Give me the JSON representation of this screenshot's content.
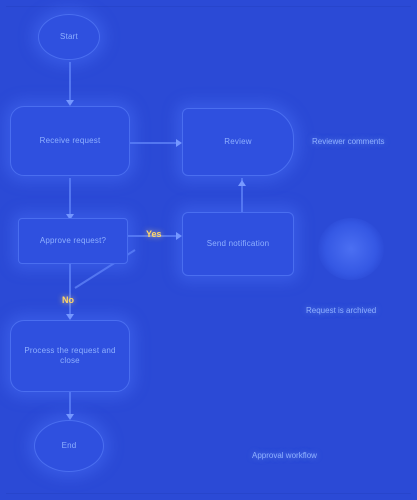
{
  "diagram": {
    "nodes": {
      "start": {
        "label": "Start"
      },
      "step1": {
        "label": "Receive request"
      },
      "step2": {
        "label": "Review"
      },
      "decision": {
        "label": "Approve request?"
      },
      "step3": {
        "label": "Send notification"
      },
      "step4": {
        "label": "Process the request and close"
      },
      "end": {
        "label": "End"
      },
      "note_right1": {
        "label": "Reviewer comments"
      },
      "note_right2": {
        "label": "Request is archived"
      },
      "legend": {
        "label": "Approval workflow"
      }
    },
    "gates": {
      "yes": "Yes",
      "no": "No"
    }
  },
  "colors": {
    "background": "#2b4ad6",
    "node_fill": "#2f50df",
    "node_border": "#4a6ef0",
    "edge": "#5c7ff5",
    "gate_text": "#ffd76a"
  }
}
